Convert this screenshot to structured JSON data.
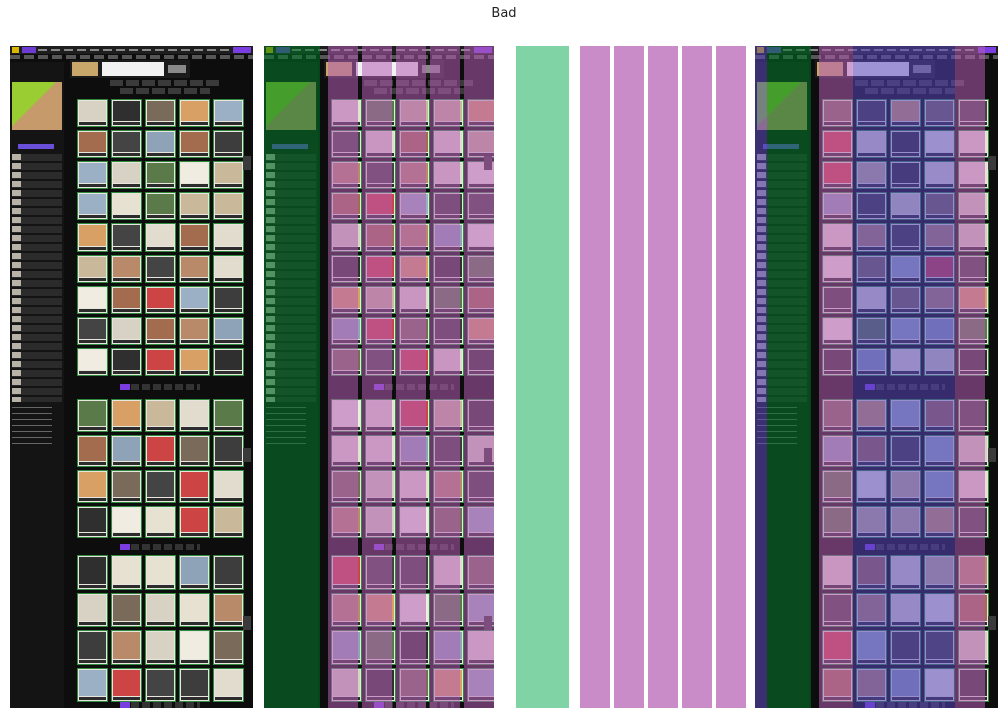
{
  "title": "Bad",
  "colors": {
    "board_bg": "#0d0d0d",
    "accent_purple": "#7a3ee0",
    "card_border_green": "#2e8b3e",
    "mask_green": "#7fd3a5",
    "mask_purple": "#c98cc9",
    "overlay_indigo": "#5846be"
  },
  "panels": [
    {
      "kind": "screenshot"
    },
    {
      "kind": "screenshot-with-overlay"
    },
    {
      "kind": "column-mask",
      "columns": [
        "green",
        "purple",
        "purple",
        "purple",
        "purple",
        "purple",
        "purple"
      ]
    },
    {
      "kind": "screenshot-with-overlay"
    }
  ]
}
